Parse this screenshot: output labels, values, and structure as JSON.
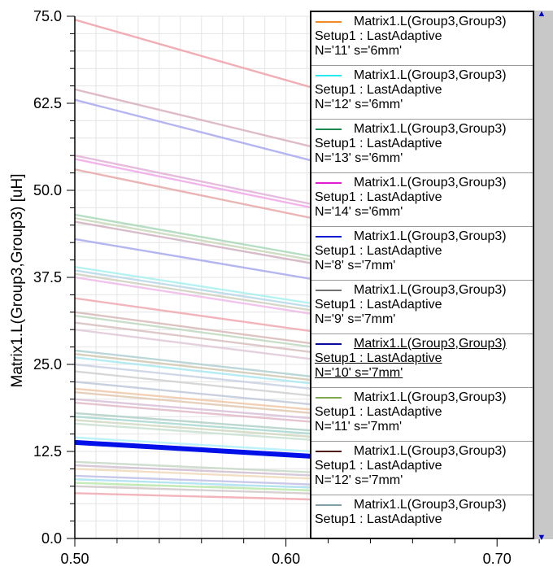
{
  "chart_data": {
    "type": "line",
    "xlabel": "",
    "ylabel": "Matrix1.L(Group3,Group3) [uH]",
    "xlim": [
      0.5,
      0.7265
    ],
    "ylim": [
      0.0,
      75.0
    ],
    "x_ticks": [
      "0.50",
      "0.60",
      "0.70"
    ],
    "x_tick_values": [
      0.5,
      0.6,
      0.7
    ],
    "y_ticks": [
      "0.0",
      "12.5",
      "25.0",
      "37.5",
      "50.0",
      "62.5",
      "75.0"
    ],
    "y_tick_values": [
      0,
      12.5,
      25,
      37.5,
      50,
      62.5,
      75
    ],
    "grid": true,
    "legend_position": "right",
    "highlighted_series": "N='10' s='7mm'",
    "highlight_color": "#0010e8",
    "series": [
      {
        "color": "#f0a0a8",
        "x": [
          0.5,
          0.725
        ],
        "y": [
          74.5,
          55.0
        ]
      },
      {
        "color": "#d8b0bc",
        "x": [
          0.5,
          0.725
        ],
        "y": [
          64.5,
          48.0
        ]
      },
      {
        "color": "#a8a8f0",
        "x": [
          0.5,
          0.725
        ],
        "y": [
          63.0,
          45.5
        ]
      },
      {
        "color": "#e0b0d8",
        "x": [
          0.5,
          0.725
        ],
        "y": [
          55.0,
          41.0
        ]
      },
      {
        "color": "#f0a8e8",
        "x": [
          0.5,
          0.725
        ],
        "y": [
          54.5,
          40.5
        ]
      },
      {
        "color": "#e8a8a8",
        "x": [
          0.5,
          0.725
        ],
        "y": [
          53.0,
          39.0
        ]
      },
      {
        "color": "#a8d8b8",
        "x": [
          0.5,
          0.725
        ],
        "y": [
          46.5,
          34.5
        ]
      },
      {
        "color": "#c8d8b8",
        "x": [
          0.5,
          0.725
        ],
        "y": [
          46.0,
          34.0
        ]
      },
      {
        "color": "#d0b0c0",
        "x": [
          0.5,
          0.725
        ],
        "y": [
          45.5,
          33.5
        ]
      },
      {
        "color": "#a8a8f0",
        "x": [
          0.5,
          0.725
        ],
        "y": [
          43.0,
          31.5
        ]
      },
      {
        "color": "#a8f0f0",
        "x": [
          0.5,
          0.725
        ],
        "y": [
          39.0,
          28.5
        ]
      },
      {
        "color": "#b8d8e8",
        "x": [
          0.5,
          0.725
        ],
        "y": [
          38.5,
          28.0
        ]
      },
      {
        "color": "#f0b8e8",
        "x": [
          0.5,
          0.725
        ],
        "y": [
          37.5,
          27.0
        ]
      },
      {
        "color": "#d0d0c0",
        "x": [
          0.5,
          0.725
        ],
        "y": [
          38.0,
          27.5
        ]
      },
      {
        "color": "#f0a8b0",
        "x": [
          0.5,
          0.725
        ],
        "y": [
          34.5,
          25.0
        ]
      },
      {
        "color": "#d8b8b8",
        "x": [
          0.5,
          0.725
        ],
        "y": [
          32.5,
          23.5
        ]
      },
      {
        "color": "#c0d8c0",
        "x": [
          0.5,
          0.725
        ],
        "y": [
          32.0,
          23.0
        ]
      },
      {
        "color": "#d8c0c0",
        "x": [
          0.5,
          0.725
        ],
        "y": [
          31.0,
          22.5
        ]
      },
      {
        "color": "#e0c8d8",
        "x": [
          0.5,
          0.725
        ],
        "y": [
          30.0,
          21.5
        ]
      },
      {
        "color": "#b0d0d0",
        "x": [
          0.5,
          0.725
        ],
        "y": [
          27.0,
          19.5
        ]
      },
      {
        "color": "#d0c8b0",
        "x": [
          0.5,
          0.725
        ],
        "y": [
          26.5,
          19.0
        ]
      },
      {
        "color": "#a8e8f0",
        "x": [
          0.5,
          0.725
        ],
        "y": [
          26.0,
          18.5
        ]
      },
      {
        "color": "#c8d0e0",
        "x": [
          0.5,
          0.725
        ],
        "y": [
          25.0,
          18.0
        ]
      },
      {
        "color": "#d0d0d0",
        "x": [
          0.5,
          0.725
        ],
        "y": [
          24.0,
          17.0
        ]
      },
      {
        "color": "#c0c8d8",
        "x": [
          0.5,
          0.725
        ],
        "y": [
          22.5,
          16.0
        ]
      },
      {
        "color": "#f0c8a8",
        "x": [
          0.5,
          0.725
        ],
        "y": [
          21.5,
          15.5
        ]
      },
      {
        "color": "#e0c8b0",
        "x": [
          0.5,
          0.725
        ],
        "y": [
          21.0,
          15.0
        ]
      },
      {
        "color": "#d8c0d8",
        "x": [
          0.5,
          0.725
        ],
        "y": [
          20.0,
          14.5
        ]
      },
      {
        "color": "#e0b8c8",
        "x": [
          0.5,
          0.725
        ],
        "y": [
          19.5,
          14.0
        ]
      },
      {
        "color": "#b0d0c8",
        "x": [
          0.5,
          0.725
        ],
        "y": [
          18.0,
          13.0
        ]
      },
      {
        "color": "#a8d8d0",
        "x": [
          0.5,
          0.725
        ],
        "y": [
          17.5,
          12.6
        ]
      },
      {
        "color": "#d0d8c0",
        "x": [
          0.5,
          0.725
        ],
        "y": [
          17.0,
          12.2
        ]
      },
      {
        "color": "#c8e0d0",
        "x": [
          0.5,
          0.725
        ],
        "y": [
          16.5,
          11.8
        ]
      },
      {
        "color": "#b0f0f8",
        "x": [
          0.5,
          0.725
        ],
        "y": [
          14.5,
          10.5
        ]
      },
      {
        "color": "#c8d8c8",
        "x": [
          0.5,
          0.725
        ],
        "y": [
          11.0,
          8.0
        ]
      },
      {
        "color": "#d0c0d0",
        "x": [
          0.5,
          0.725
        ],
        "y": [
          10.5,
          7.6
        ]
      },
      {
        "color": "#f0d8b8",
        "x": [
          0.5,
          0.725
        ],
        "y": [
          10.0,
          7.2
        ]
      },
      {
        "color": "#c0c0e8",
        "x": [
          0.5,
          0.725
        ],
        "y": [
          9.0,
          6.5
        ]
      },
      {
        "color": "#a8e0f0",
        "x": [
          0.5,
          0.725
        ],
        "y": [
          8.5,
          6.1
        ]
      },
      {
        "color": "#b8e8a8",
        "x": [
          0.5,
          0.725
        ],
        "y": [
          8.0,
          5.8
        ]
      },
      {
        "color": "#d0c8c8",
        "x": [
          0.5,
          0.725
        ],
        "y": [
          7.5,
          5.4
        ]
      },
      {
        "color": "#f0a8b0",
        "x": [
          0.5,
          0.725
        ],
        "y": [
          6.5,
          4.7
        ]
      },
      {
        "color": "#0010e8",
        "x": [
          0.5,
          0.725
        ],
        "y": [
          13.8,
          9.8
        ]
      }
    ]
  },
  "legend": {
    "entries": [
      {
        "color": "#f08c28",
        "line1": "Matrix1.L(Group3,Group3)",
        "line2": "Setup1 : LastAdaptive",
        "line3": "N='11' s='6mm'"
      },
      {
        "color": "#28e8f0",
        "line1": "Matrix1.L(Group3,Group3)",
        "line2": "Setup1 : LastAdaptive",
        "line3": "N='12' s='6mm'"
      },
      {
        "color": "#1a8850",
        "line1": "Matrix1.L(Group3,Group3)",
        "line2": "Setup1 : LastAdaptive",
        "line3": "N='13' s='6mm'"
      },
      {
        "color": "#e020d0",
        "line1": "Matrix1.L(Group3,Group3)",
        "line2": "Setup1 : LastAdaptive",
        "line3": "N='14' s='6mm'"
      },
      {
        "color": "#0018d0",
        "line1": "Matrix1.L(Group3,Group3)",
        "line2": "Setup1 : LastAdaptive",
        "line3": "N='8' s='7mm'"
      },
      {
        "color": "#707070",
        "line1": "Matrix1.L(Group3,Group3)",
        "line2": "Setup1 : LastAdaptive",
        "line3": "N='9' s='7mm'"
      },
      {
        "color": "#0a0aa0",
        "line1": "Matrix1.L(Group3,Group3)",
        "line2": "Setup1 : LastAdaptive",
        "line3": "N='10' s='7mm'",
        "selected": true
      },
      {
        "color": "#80a850",
        "line1": "Matrix1.L(Group3,Group3)",
        "line2": "Setup1 : LastAdaptive",
        "line3": "N='11' s='7mm'"
      },
      {
        "color": "#501818",
        "line1": "Matrix1.L(Group3,Group3)",
        "line2": "Setup1 : LastAdaptive",
        "line3": "N='12' s='7mm'"
      },
      {
        "color": "#80a0a8",
        "line1": "Matrix1.L(Group3,Group3)",
        "line2": "Setup1 : LastAdaptive",
        "line3": ""
      }
    ]
  },
  "scrollbar": {
    "up_icon": "arrow-up-icon",
    "down_icon": "arrow-down-icon"
  }
}
